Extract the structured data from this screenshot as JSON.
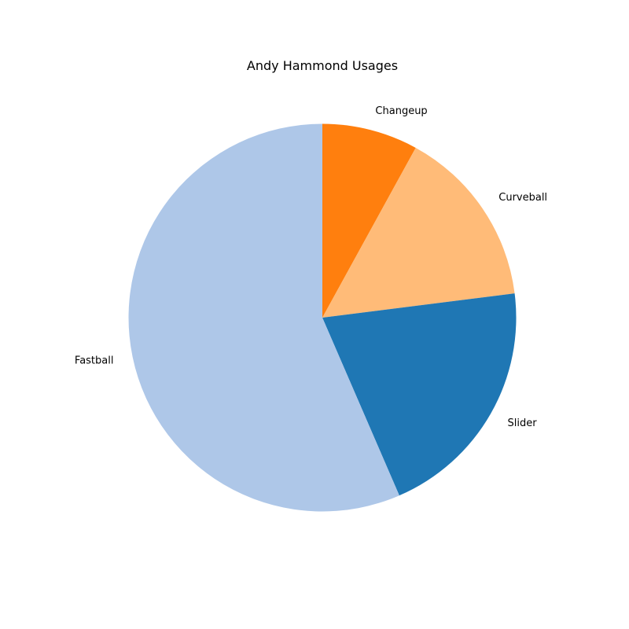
{
  "chart_data": {
    "type": "pie",
    "title": "Andy Hammond Usages",
    "categories": [
      "Changeup",
      "Curveball",
      "Slider",
      "Fastball"
    ],
    "values": [
      8,
      15,
      20.5,
      56.5
    ],
    "unit": "percent",
    "colors": [
      "#ff7f0e",
      "#ffbb78",
      "#1f77b4",
      "#aec7e8"
    ],
    "start_angle_deg": 90,
    "direction": "clockwise",
    "legend": "none",
    "labels_position": "outside"
  }
}
